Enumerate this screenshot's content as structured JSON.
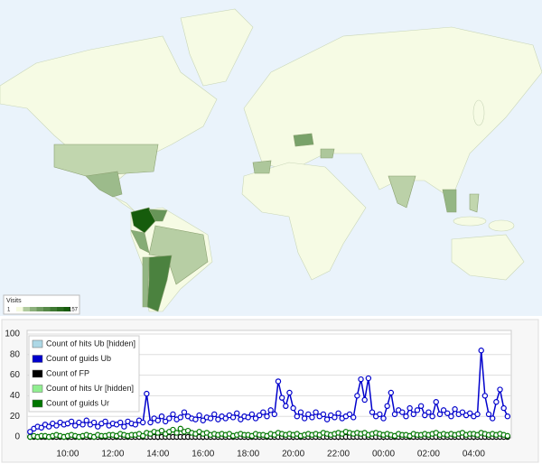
{
  "map": {
    "legend_title": "Visits",
    "legend_min": 1,
    "legend_max": 157,
    "values": [
      157,
      100,
      75,
      50,
      40,
      35,
      60,
      20,
      15,
      40,
      25,
      25,
      18,
      15
    ]
  },
  "chart_data": {
    "type": "line",
    "x": [
      "08:20",
      "08:30",
      "08:40",
      "08:50",
      "09:00",
      "09:10",
      "09:20",
      "09:30",
      "09:40",
      "09:50",
      "10:00",
      "10:10",
      "10:20",
      "10:30",
      "10:40",
      "10:50",
      "11:00",
      "11:10",
      "11:20",
      "11:30",
      "11:40",
      "11:50",
      "12:00",
      "12:10",
      "12:20",
      "12:30",
      "12:40",
      "12:50",
      "13:00",
      "13:10",
      "13:20",
      "13:30",
      "13:40",
      "13:50",
      "14:00",
      "14:10",
      "14:20",
      "14:30",
      "14:40",
      "14:50",
      "15:00",
      "15:10",
      "15:20",
      "15:30",
      "15:40",
      "15:50",
      "16:00",
      "16:10",
      "16:20",
      "16:30",
      "16:40",
      "16:50",
      "17:00",
      "17:10",
      "17:20",
      "17:30",
      "17:40",
      "17:50",
      "18:00",
      "18:10",
      "18:20",
      "18:30",
      "18:40",
      "18:50",
      "19:00",
      "19:10",
      "19:20",
      "19:30",
      "19:40",
      "19:50",
      "20:00",
      "20:10",
      "20:20",
      "20:30",
      "20:40",
      "20:50",
      "21:00",
      "21:10",
      "21:20",
      "21:30",
      "21:40",
      "21:50",
      "22:00",
      "22:10",
      "22:20",
      "22:30",
      "22:40",
      "22:50",
      "23:00",
      "23:10",
      "23:20",
      "23:30",
      "23:40",
      "23:50",
      "00:00",
      "00:10",
      "00:20",
      "00:30",
      "00:40",
      "00:50",
      "01:00",
      "01:10",
      "01:20",
      "01:30",
      "01:40",
      "01:50",
      "02:00",
      "02:10",
      "02:20",
      "02:30",
      "02:40",
      "02:50",
      "03:00",
      "03:10",
      "03:20",
      "03:30",
      "03:40",
      "03:50",
      "04:00",
      "04:10",
      "04:20",
      "04:30",
      "04:40",
      "04:50",
      "05:00",
      "05:10",
      "05:20",
      "05:30"
    ],
    "xlim": [
      "08:12",
      "05:40"
    ],
    "xticks": [
      "10:00",
      "12:00",
      "14:00",
      "16:00",
      "18:00",
      "20:00",
      "22:00",
      "00:00",
      "02:00",
      "04:00"
    ],
    "ylim": [
      0,
      100
    ],
    "yticks": [
      0,
      20,
      40,
      60,
      80,
      100
    ],
    "grid": true,
    "legend": "top-left",
    "series": [
      {
        "name": "Count of hits Ub [hidden]",
        "color": "#add8e6"
      },
      {
        "name": "Count of guids Ub",
        "color": "#0000cc",
        "values": [
          5,
          8,
          10,
          9,
          12,
          10,
          13,
          11,
          14,
          12,
          13,
          15,
          11,
          14,
          12,
          16,
          12,
          14,
          10,
          13,
          15,
          11,
          13,
          12,
          14,
          10,
          15,
          13,
          12,
          16,
          14,
          42,
          14,
          18,
          16,
          20,
          15,
          18,
          22,
          17,
          19,
          24,
          20,
          18,
          17,
          21,
          16,
          19,
          18,
          22,
          17,
          20,
          18,
          21,
          19,
          23,
          17,
          20,
          19,
          22,
          18,
          21,
          24,
          20,
          26,
          22,
          54,
          38,
          30,
          43,
          28,
          20,
          24,
          18,
          22,
          19,
          24,
          20,
          22,
          17,
          21,
          19,
          23,
          18,
          20,
          22,
          19,
          40,
          56,
          36,
          57,
          24,
          20,
          22,
          18,
          30,
          43,
          22,
          26,
          24,
          20,
          28,
          22,
          26,
          30,
          21,
          24,
          20,
          34,
          22,
          26,
          23,
          20,
          27,
          22,
          24,
          21,
          23,
          20,
          22,
          84,
          40,
          22,
          18,
          34,
          46,
          28,
          20
        ]
      },
      {
        "name": "Count of FP",
        "color": "#000000",
        "values": [
          0,
          0,
          0,
          0,
          0,
          0,
          0,
          0,
          0,
          0,
          0,
          0,
          0,
          0,
          0,
          0,
          0,
          0,
          0,
          0,
          0,
          0,
          0,
          0,
          0,
          0,
          0,
          0,
          0,
          0,
          0,
          0,
          0,
          0,
          0,
          0,
          0,
          0,
          0,
          0,
          0,
          0,
          0,
          0,
          0,
          0,
          0,
          0,
          0,
          0,
          0,
          0,
          0,
          0,
          0,
          0,
          0,
          0,
          0,
          0,
          0,
          0,
          0,
          0,
          0,
          0,
          0,
          0,
          0,
          0,
          0,
          0,
          0,
          0,
          0,
          0,
          0,
          0,
          0,
          0,
          0,
          0,
          0,
          0,
          0,
          0,
          0,
          0,
          0,
          0,
          0,
          0,
          0,
          0,
          0,
          0,
          0,
          0,
          0,
          0,
          0,
          0,
          0,
          0,
          0,
          0,
          0,
          0,
          0,
          0,
          0,
          0,
          0,
          0,
          0,
          0,
          0,
          0,
          0,
          0,
          0,
          0,
          0,
          0,
          0,
          0,
          0,
          0
        ]
      },
      {
        "name": "Count of hits Ur [hidden]",
        "color": "#90ee90"
      },
      {
        "name": "Count of guids Ur",
        "color": "#007700",
        "values": [
          0,
          1,
          0,
          1,
          1,
          0,
          1,
          2,
          1,
          0,
          1,
          2,
          1,
          0,
          1,
          2,
          1,
          0,
          2,
          1,
          1,
          2,
          2,
          1,
          3,
          2,
          1,
          2,
          2,
          3,
          1,
          4,
          3,
          5,
          4,
          6,
          3,
          5,
          7,
          4,
          8,
          5,
          6,
          4,
          3,
          5,
          3,
          4,
          2,
          3,
          2,
          3,
          2,
          3,
          1,
          2,
          3,
          2,
          2,
          1,
          3,
          2,
          2,
          1,
          3,
          2,
          4,
          3,
          2,
          3,
          2,
          3,
          1,
          2,
          3,
          2,
          3,
          2,
          4,
          3,
          2,
          3,
          4,
          3,
          5,
          4,
          3,
          4,
          3,
          4,
          2,
          3,
          4,
          3,
          2,
          3,
          2,
          1,
          3,
          2,
          2,
          1,
          3,
          2,
          2,
          3,
          2,
          3,
          4,
          2,
          3,
          2,
          3,
          2,
          3,
          4,
          2,
          3,
          3,
          2,
          4,
          3,
          2,
          3,
          2,
          3,
          2,
          1
        ]
      }
    ]
  }
}
